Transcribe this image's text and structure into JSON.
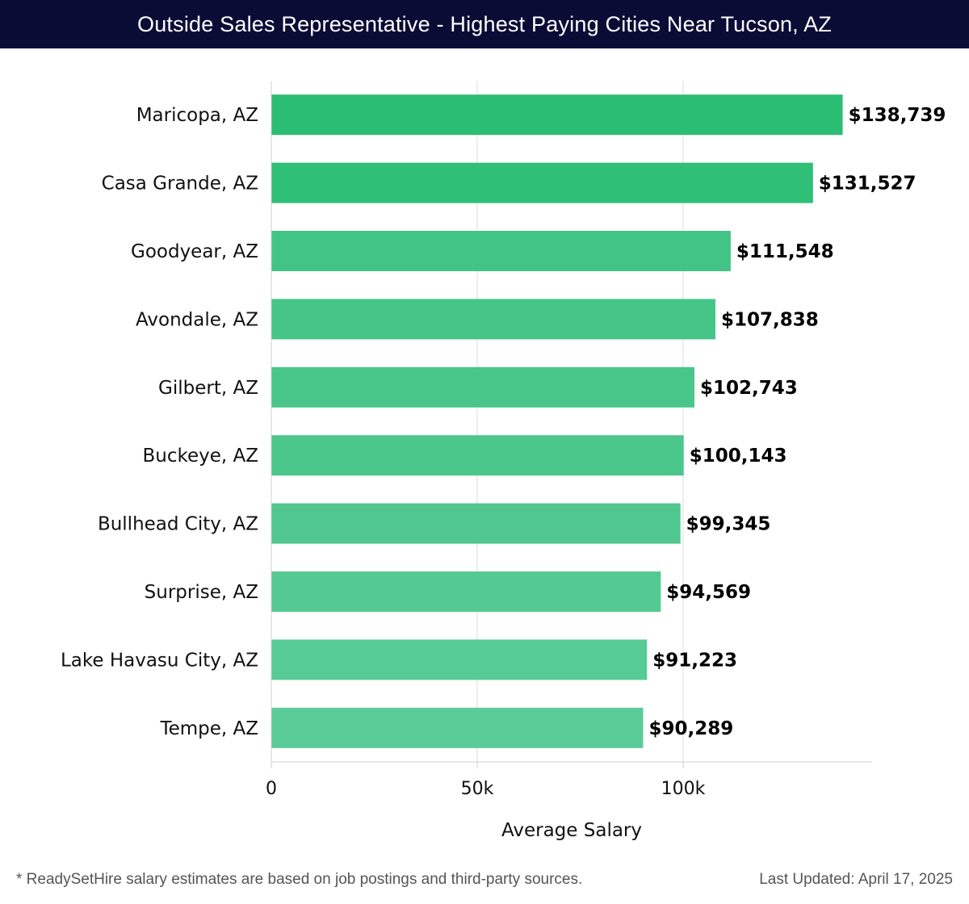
{
  "header": {
    "title": "Outside Sales Representative - Highest Paying Cities Near Tucson, AZ"
  },
  "chart_data": {
    "type": "bar",
    "orientation": "horizontal",
    "title": "Outside Sales Representative - Highest Paying Cities Near Tucson, AZ",
    "xlabel": "Average Salary",
    "ylabel": "",
    "xlim": [
      0,
      146000
    ],
    "xticks": [
      0,
      50000,
      100000
    ],
    "xtick_labels": [
      "0",
      "50k",
      "100k"
    ],
    "grid": true,
    "categories": [
      "Maricopa, AZ",
      "Casa Grande, AZ",
      "Goodyear, AZ",
      "Avondale, AZ",
      "Gilbert, AZ",
      "Buckeye, AZ",
      "Bullhead City, AZ",
      "Surprise, AZ",
      "Lake Havasu City, AZ",
      "Tempe, AZ"
    ],
    "values": [
      138739,
      131527,
      111548,
      107838,
      102743,
      100143,
      99345,
      94569,
      91223,
      90289
    ],
    "value_labels": [
      "$138,739",
      "$131,527",
      "$111,548",
      "$107,838",
      "$102,743",
      "$100,143",
      "$99,345",
      "$94,569",
      "$91,223",
      "$90,289"
    ],
    "bar_colors": [
      "#2bbd73",
      "#2fbf76",
      "#43c487",
      "#46c588",
      "#49c68a",
      "#4cc78c",
      "#50c88f",
      "#54ca92",
      "#57cb95",
      "#5acc97"
    ]
  },
  "footer": {
    "note": "* ReadySetHire salary estimates are based on job postings and third-party sources.",
    "updated": "Last Updated: April 17, 2025"
  }
}
